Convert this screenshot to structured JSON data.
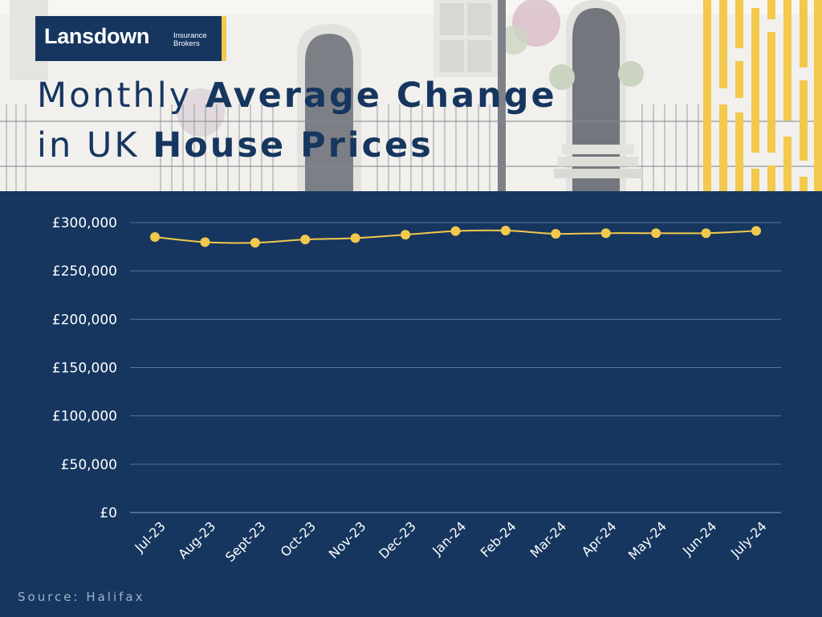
{
  "header": {
    "logo_brand": "Lansdown",
    "logo_sub_line1": "Insurance",
    "logo_sub_line2": "Brokers",
    "title_line1_light": "Monthly ",
    "title_line1_bold": "Average Change",
    "title_line2_light": "in UK ",
    "title_line2_bold": "House Prices"
  },
  "colors": {
    "navy": "#16365f",
    "gold": "#f2c94c",
    "gridline": "#5b7394",
    "axis_text": "#ffffff"
  },
  "chart_data": {
    "type": "line",
    "title": "",
    "xlabel": "",
    "ylabel": "",
    "categories": [
      "Jul-23",
      "Aug-23",
      "Sept-23",
      "Oct-23",
      "Nov-23",
      "Dec-23",
      "Jan-24",
      "Feb-24",
      "Mar-24",
      "Apr-24",
      "May-24",
      "Jun-24",
      "July-24"
    ],
    "series": [
      {
        "values": [
          285000,
          279700,
          279100,
          282400,
          283900,
          287400,
          291200,
          291700,
          288400,
          289000,
          289000,
          289000,
          291400
        ]
      }
    ],
    "ylim": [
      0,
      300000
    ],
    "yticks": [
      0,
      50000,
      100000,
      150000,
      200000,
      250000,
      300000
    ],
    "ytick_labels": [
      "£0",
      "£50,000",
      "£100,000",
      "£150,000",
      "£200,000",
      "£250,000",
      "£300,000"
    ],
    "grid": true,
    "legend": "none"
  },
  "footer": {
    "source": "Source: Halifax"
  }
}
